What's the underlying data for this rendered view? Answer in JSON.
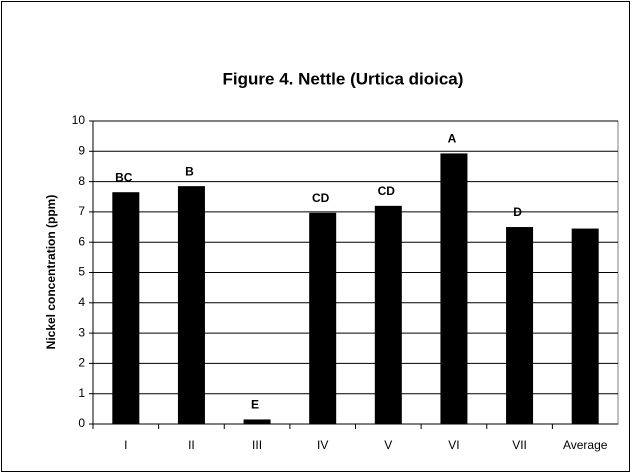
{
  "chart_data": {
    "type": "bar",
    "title": "Figure 4. Nettle (Urtica dioica)",
    "y_label": "Nickel concentration (ppm)",
    "categories": [
      "I",
      "II",
      "III",
      "IV",
      "V",
      "VI",
      "VII",
      "Average"
    ],
    "values": [
      7.65,
      7.85,
      0.15,
      6.97,
      7.2,
      8.93,
      6.5,
      6.45
    ],
    "annotations": [
      "BC",
      "B",
      "E",
      "CD",
      "CD",
      "A",
      "D",
      null
    ],
    "color": "#000000",
    "ylim": [
      0,
      10
    ],
    "yticks": [
      0,
      1,
      2,
      3,
      4,
      5,
      6,
      7,
      8,
      9,
      10
    ],
    "grid": true
  }
}
